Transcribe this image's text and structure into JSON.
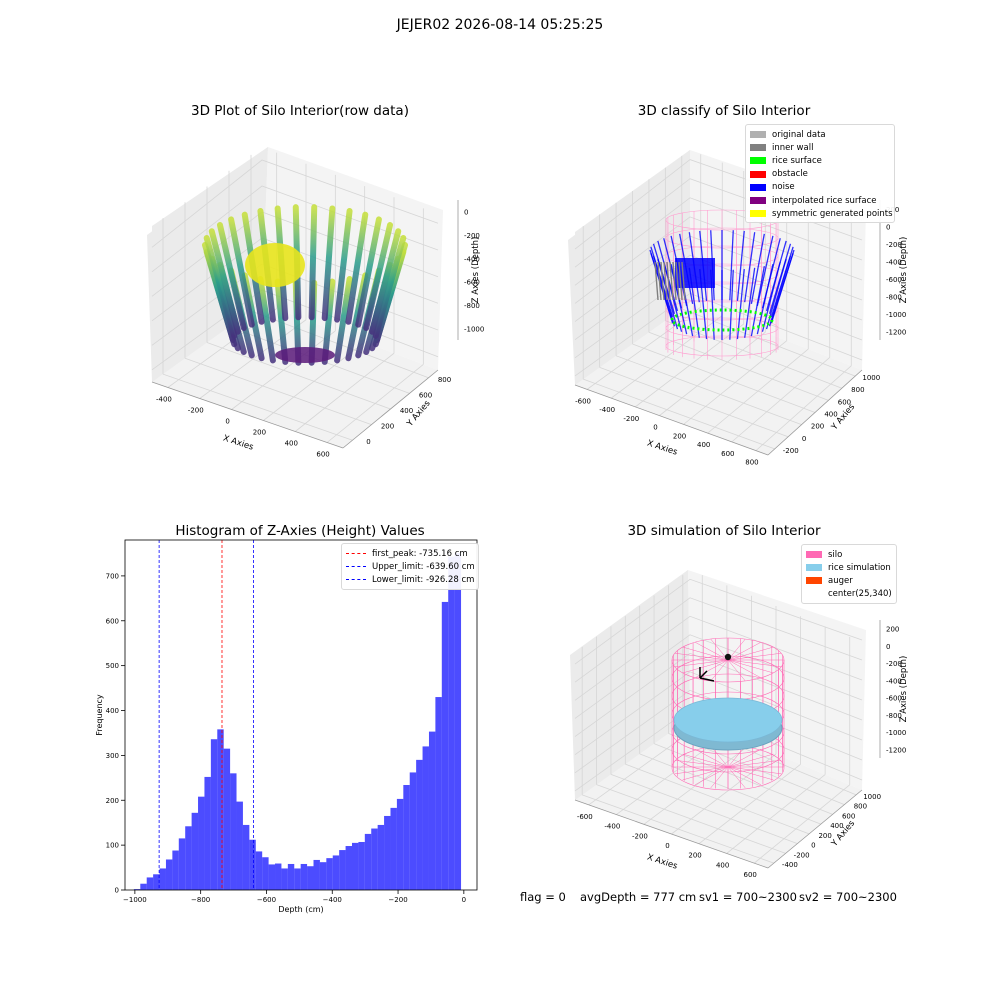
{
  "suptitle": "JEJER02 2026-08-14 05:25:25",
  "footer": {
    "flag": "flag = 0",
    "avg_depth": "avgDepth = 777 cm",
    "sv1": "sv1 = 700~2300",
    "sv2": "sv2 = 700~2300"
  },
  "plots": {
    "raw": {
      "title": "3D Plot of Silo Interior(row data)",
      "xlabel": "X Axies",
      "ylabel": "Y Axies",
      "zlabel": "Z Axies (Depth)",
      "xticks": [
        "-400",
        "-200",
        "0",
        "200",
        "400",
        "600"
      ],
      "yticks": [
        "0",
        "200",
        "400",
        "600",
        "800"
      ],
      "zticks": [
        "0",
        "-200",
        "-400",
        "-600",
        "-800",
        "-1000"
      ]
    },
    "classify": {
      "title": "3D classify of Silo Interior",
      "xlabel": "X Axies",
      "ylabel": "Y Axies",
      "zlabel": "Z Axies (Depth)",
      "xticks": [
        "-600",
        "-400",
        "-200",
        "0",
        "200",
        "400",
        "600",
        "800"
      ],
      "yticks": [
        "-200",
        "0",
        "200",
        "400",
        "600",
        "800",
        "1000"
      ],
      "zticks": [
        "200",
        "0",
        "-200",
        "-400",
        "-600",
        "-800",
        "-1000",
        "-1200"
      ],
      "legend": [
        {
          "label": "original data",
          "color": "#b0b0b0"
        },
        {
          "label": "inner wall",
          "color": "#808080"
        },
        {
          "label": "rice surface",
          "color": "#00ff00"
        },
        {
          "label": "obstacle",
          "color": "#ff0000"
        },
        {
          "label": "noise",
          "color": "#0000ff"
        },
        {
          "label": "interpolated rice surface",
          "color": "#800080"
        },
        {
          "label": "symmetric generated points",
          "color": "#ffff00"
        }
      ]
    },
    "simulation": {
      "title": "3D simulation of Silo Interior",
      "xlabel": "X Axies",
      "ylabel": "Y Axies",
      "zlabel": "Z Axies (Depth)",
      "xticks": [
        "-600",
        "-400",
        "-200",
        "0",
        "200",
        "400",
        "600"
      ],
      "yticks": [
        "-400",
        "-200",
        "0",
        "200",
        "400",
        "600",
        "800",
        "1000"
      ],
      "zticks": [
        "200",
        "0",
        "-200",
        "-400",
        "-600",
        "-800",
        "-1000",
        "-1200"
      ],
      "legend": [
        {
          "label": "silo",
          "color": "#ff69b4"
        },
        {
          "label": "rice simulation",
          "color": "#87ceeb"
        },
        {
          "label": "auger",
          "color": "#ff4500"
        },
        {
          "label": "center(25,340)",
          "color": ""
        }
      ]
    }
  },
  "chart_data": {
    "type": "bar",
    "title": "Histogram of Z-Axies (Height) Values",
    "xlabel": "Depth (cm)",
    "ylabel": "Frequency",
    "xlim": [
      -1000,
      0
    ],
    "ylim": [
      0,
      780
    ],
    "xticks": [
      -1000,
      -800,
      -600,
      -400,
      -200,
      0
    ],
    "yticks": [
      0,
      100,
      200,
      300,
      400,
      500,
      600,
      700
    ],
    "bar_color": "#0000ff",
    "bin_width": 19.5,
    "bin_starts": [
      -1003,
      -983.5,
      -964,
      -944.5,
      -925,
      -905.5,
      -886,
      -866.5,
      -847,
      -827.5,
      -808,
      -788.5,
      -769,
      -749.5,
      -730,
      -710.5,
      -691,
      -671.5,
      -652,
      -632.5,
      -613,
      -593.5,
      -574,
      -554.5,
      -535,
      -515.5,
      -496,
      -476.5,
      -457,
      -437.5,
      -418,
      -398.5,
      -379,
      -359.5,
      -340,
      -320.5,
      -301,
      -281.5,
      -262,
      -242.5,
      -223,
      -203.5,
      -184,
      -164.5,
      -145,
      -125.5,
      -106,
      -86.5,
      -67,
      -47.5,
      -28,
      -8.5
    ],
    "values": [
      2,
      14,
      28,
      35,
      48,
      68,
      88,
      115,
      142,
      172,
      208,
      252,
      336,
      358,
      315,
      260,
      197,
      145,
      112,
      86,
      73,
      57,
      59,
      48,
      58,
      48,
      58,
      53,
      67,
      62,
      71,
      77,
      89,
      98,
      105,
      107,
      125,
      137,
      145,
      165,
      183,
      203,
      234,
      262,
      290,
      320,
      353,
      430,
      642,
      743,
      751,
      0
    ],
    "lines": [
      {
        "label": "first_peak: -735.16 cm",
        "x": -735.16,
        "color": "#ff0000"
      },
      {
        "label": "Upper_limit: -639.60 cm",
        "x": -639.6,
        "color": "#0000ff"
      },
      {
        "label": "Lower_limit: -926.28 cm",
        "x": -926.28,
        "color": "#0000ff"
      }
    ]
  }
}
